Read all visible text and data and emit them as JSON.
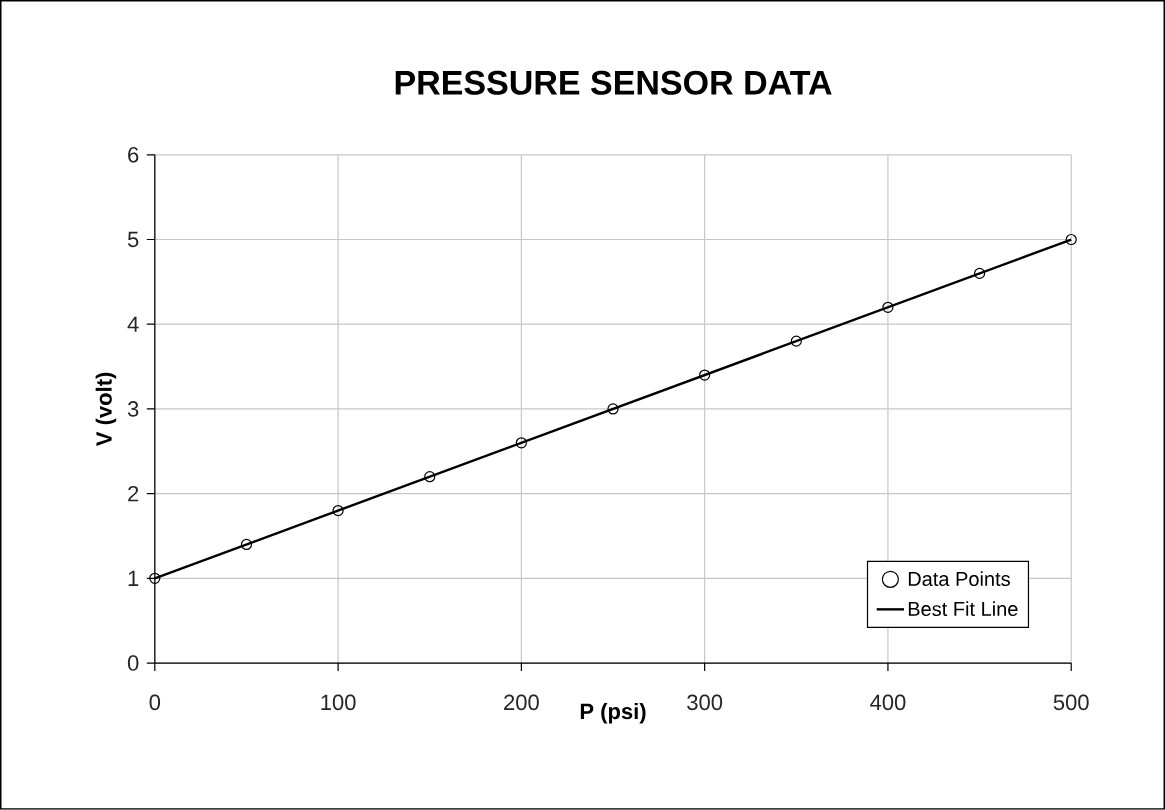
{
  "chart_data": {
    "type": "scatter",
    "title": "PRESSURE SENSOR DATA",
    "xlabel": "P (psi)",
    "ylabel": "V (volt)",
    "x": [
      0,
      50,
      100,
      150,
      200,
      250,
      300,
      350,
      400,
      450,
      500
    ],
    "series": [
      {
        "name": "Data Points",
        "color": "#000000",
        "marker": "circle",
        "values": [
          1.0,
          1.4,
          1.8,
          2.2,
          2.6,
          3.0,
          3.4,
          3.8,
          4.2,
          4.6,
          5.0
        ]
      },
      {
        "name": "Best Fit Line",
        "type": "line",
        "color": "#000000",
        "marker": "none",
        "x": [
          0,
          500
        ],
        "values": [
          1.0,
          5.0
        ]
      }
    ],
    "xlim": [
      0,
      500
    ],
    "ylim": [
      0,
      6
    ],
    "xticks": [
      0,
      100,
      200,
      300,
      400,
      500
    ],
    "yticks": [
      0,
      1,
      2,
      3,
      4,
      5,
      6
    ],
    "grid": true,
    "legend": "bottom right"
  }
}
